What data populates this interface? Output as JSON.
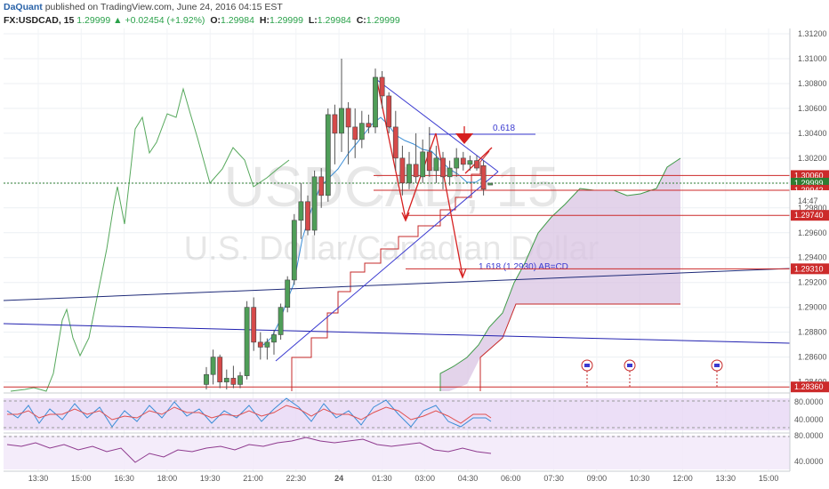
{
  "header": {
    "author": "DaQuant",
    "published": "published on TradingView.com, June 24, 2016 04:15 EST",
    "symbol": "FX:USDCAD, 15",
    "last": "1.29999",
    "change_arrow": "▲",
    "change": "+0.02454 (+1.92%)",
    "o_label": "O:",
    "o_value": "1.29984",
    "h_label": "H:",
    "h_value": "1.29999",
    "l_label": "L:",
    "l_value": "1.29984",
    "c_label": "C:",
    "c_value": "1.29999"
  },
  "watermark": {
    "symbol": "USDCAD, 15",
    "name": "U.S. Dollar/Canadian Dollar"
  },
  "colors": {
    "bull": "#4f9e58",
    "bear": "#d64a4a",
    "grid": "#e8ecf0",
    "accent_blue": "#3a3ad0",
    "cloud": "#d8c0e0",
    "osc_bg": "#e6d8f4"
  },
  "chart_data": {
    "type": "candlestick",
    "symbol": "FX:USDCAD",
    "interval": "15",
    "ylim": [
      1.2834,
      1.3125
    ],
    "price_ticks": [
      "1.31200",
      "1.31000",
      "1.30800",
      "1.30600",
      "1.30400",
      "1.30200",
      "1.30000",
      "1.29800",
      "1.29600",
      "1.29400",
      "1.29200",
      "1.29000",
      "1.28800",
      "1.28600",
      "1.28400"
    ],
    "time_ticks": [
      "13:30",
      "15:00",
      "16:30",
      "18:00",
      "19:30",
      "21:00",
      "22:30",
      "24",
      "01:30",
      "03:00",
      "04:30",
      "06:00",
      "07:30",
      "09:00",
      "10:30",
      "12:00",
      "13:30",
      "15:00"
    ],
    "candles": [
      {
        "o": 1.2838,
        "h": 1.2852,
        "l": 1.2832,
        "c": 1.2846
      },
      {
        "o": 1.2846,
        "h": 1.2866,
        "l": 1.2838,
        "c": 1.286
      },
      {
        "o": 1.286,
        "h": 1.2862,
        "l": 1.2835,
        "c": 1.284
      },
      {
        "o": 1.284,
        "h": 1.285,
        "l": 1.2834,
        "c": 1.2843
      },
      {
        "o": 1.2843,
        "h": 1.2853,
        "l": 1.2835,
        "c": 1.2838
      },
      {
        "o": 1.2838,
        "h": 1.2848,
        "l": 1.2835,
        "c": 1.2845
      },
      {
        "o": 1.2845,
        "h": 1.2905,
        "l": 1.2842,
        "c": 1.29
      },
      {
        "o": 1.29,
        "h": 1.2908,
        "l": 1.2865,
        "c": 1.2872
      },
      {
        "o": 1.2872,
        "h": 1.288,
        "l": 1.2858,
        "c": 1.2868
      },
      {
        "o": 1.2868,
        "h": 1.2875,
        "l": 1.2858,
        "c": 1.2872
      },
      {
        "o": 1.2872,
        "h": 1.2882,
        "l": 1.2862,
        "c": 1.2878
      },
      {
        "o": 1.2878,
        "h": 1.2903,
        "l": 1.2874,
        "c": 1.29
      },
      {
        "o": 1.29,
        "h": 1.2925,
        "l": 1.2896,
        "c": 1.2922
      },
      {
        "o": 1.2922,
        "h": 1.2975,
        "l": 1.2918,
        "c": 1.297
      },
      {
        "o": 1.297,
        "h": 1.3,
        "l": 1.2955,
        "c": 1.2985
      },
      {
        "o": 1.2985,
        "h": 1.299,
        "l": 1.2958,
        "c": 1.2962
      },
      {
        "o": 1.2962,
        "h": 1.301,
        "l": 1.2958,
        "c": 1.3005
      },
      {
        "o": 1.3005,
        "h": 1.3012,
        "l": 1.298,
        "c": 1.299
      },
      {
        "o": 1.299,
        "h": 1.306,
        "l": 1.2985,
        "c": 1.3055
      },
      {
        "o": 1.3055,
        "h": 1.3063,
        "l": 1.3015,
        "c": 1.304
      },
      {
        "o": 1.304,
        "h": 1.31,
        "l": 1.3025,
        "c": 1.306
      },
      {
        "o": 1.306,
        "h": 1.3065,
        "l": 1.3015,
        "c": 1.3045
      },
      {
        "o": 1.3045,
        "h": 1.306,
        "l": 1.302,
        "c": 1.3035
      },
      {
        "o": 1.3035,
        "h": 1.3058,
        "l": 1.3028,
        "c": 1.3048
      },
      {
        "o": 1.3048,
        "h": 1.3055,
        "l": 1.304,
        "c": 1.3045
      },
      {
        "o": 1.3045,
        "h": 1.3092,
        "l": 1.304,
        "c": 1.3085
      },
      {
        "o": 1.3085,
        "h": 1.309,
        "l": 1.306,
        "c": 1.307
      },
      {
        "o": 1.307,
        "h": 1.3073,
        "l": 1.304,
        "c": 1.3045
      },
      {
        "o": 1.3045,
        "h": 1.3058,
        "l": 1.301,
        "c": 1.302
      },
      {
        "o": 1.302,
        "h": 1.303,
        "l": 1.299,
        "c": 1.3
      },
      {
        "o": 1.3,
        "h": 1.3025,
        "l": 1.2995,
        "c": 1.3015
      },
      {
        "o": 1.3015,
        "h": 1.304,
        "l": 1.3,
        "c": 1.3005
      },
      {
        "o": 1.3005,
        "h": 1.3035,
        "l": 1.3,
        "c": 1.3025
      },
      {
        "o": 1.3025,
        "h": 1.3045,
        "l": 1.3005,
        "c": 1.301
      },
      {
        "o": 1.301,
        "h": 1.303,
        "l": 1.3,
        "c": 1.302
      },
      {
        "o": 1.302,
        "h": 1.3025,
        "l": 1.2995,
        "c": 1.3005
      },
      {
        "o": 1.3005,
        "h": 1.3018,
        "l": 1.2998,
        "c": 1.3012
      },
      {
        "o": 1.3012,
        "h": 1.3028,
        "l": 1.3005,
        "c": 1.302
      },
      {
        "o": 1.302,
        "h": 1.3025,
        "l": 1.301,
        "c": 1.3015
      },
      {
        "o": 1.3015,
        "h": 1.3022,
        "l": 1.301,
        "c": 1.3018
      },
      {
        "o": 1.3018,
        "h": 1.3022,
        "l": 1.301,
        "c": 1.3012
      },
      {
        "o": 1.3014,
        "h": 1.3018,
        "l": 1.299,
        "c": 1.2995
      },
      {
        "o": 1.29984,
        "h": 1.29999,
        "l": 1.29984,
        "c": 1.29999
      }
    ],
    "horizontal_levels": [
      {
        "price": 1.3006,
        "label": "1.30060",
        "color": "#cc2a2a"
      },
      {
        "price": 1.29999,
        "label": "1.29999",
        "color": "#2e7d32"
      },
      {
        "price": 1.29942,
        "label": "1.29942",
        "color": "#cc2a2a"
      },
      {
        "price": 1.2974,
        "label": "1.29740",
        "color": "#cc2a2a"
      },
      {
        "price": 1.2931,
        "label": "1.29310",
        "color": "#cc2a2a"
      },
      {
        "price": 1.2836,
        "label": "1.28360",
        "color": "#cc2a2a"
      }
    ],
    "countdown": "14:47",
    "annotations": {
      "fib_618": "0.618",
      "abcd_target": "1.618 (1.2930) AB=CD"
    },
    "oscillator_1": {
      "ticks": [
        "80.0000",
        "40.0000"
      ],
      "range": [
        0,
        100
      ]
    },
    "oscillator_2": {
      "ticks": [
        "80.0000",
        "40.0000"
      ],
      "range": [
        0,
        100
      ]
    },
    "grid": true
  }
}
